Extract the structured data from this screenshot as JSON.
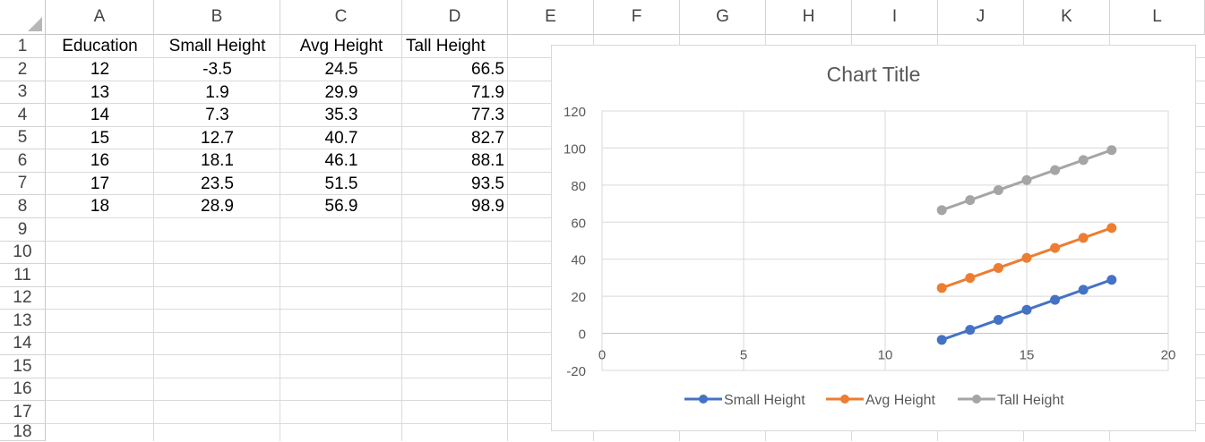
{
  "sheet": {
    "columns": [
      "A",
      "B",
      "C",
      "D",
      "E",
      "F",
      "G",
      "H",
      "I",
      "J",
      "K",
      "L"
    ],
    "rows": [
      "1",
      "2",
      "3",
      "4",
      "5",
      "6",
      "7",
      "8",
      "9",
      "10",
      "11",
      "12",
      "13",
      "14",
      "15",
      "16",
      "17",
      "18"
    ],
    "headers": [
      "Education",
      "Small Height",
      "Avg Height",
      "Tall Height"
    ],
    "data": [
      [
        "12",
        "-3.5",
        "24.5",
        "66.5"
      ],
      [
        "13",
        "1.9",
        "29.9",
        "71.9"
      ],
      [
        "14",
        "7.3",
        "35.3",
        "77.3"
      ],
      [
        "15",
        "12.7",
        "40.7",
        "82.7"
      ],
      [
        "16",
        "18.1",
        "46.1",
        "88.1"
      ],
      [
        "17",
        "23.5",
        "51.5",
        "93.5"
      ],
      [
        "18",
        "28.9",
        "56.9",
        "98.9"
      ]
    ]
  },
  "chart_data": {
    "type": "line",
    "title": "Chart Title",
    "xlabel": "",
    "ylabel": "",
    "xlim": [
      0,
      20
    ],
    "ylim": [
      -20,
      120
    ],
    "x_ticks": [
      "0",
      "5",
      "10",
      "15",
      "20"
    ],
    "y_ticks": [
      "-20",
      "0",
      "20",
      "40",
      "60",
      "80",
      "100",
      "120"
    ],
    "x": [
      12,
      13,
      14,
      15,
      16,
      17,
      18
    ],
    "series": [
      {
        "name": "Small Height",
        "color": "#4472c4",
        "values": [
          -3.5,
          1.9,
          7.3,
          12.7,
          18.1,
          23.5,
          28.9
        ]
      },
      {
        "name": "Avg Height",
        "color": "#ed7d31",
        "values": [
          24.5,
          29.9,
          35.3,
          40.7,
          46.1,
          51.5,
          56.9
        ]
      },
      {
        "name": "Tall Height",
        "color": "#a5a5a5",
        "values": [
          66.5,
          71.9,
          77.3,
          82.7,
          88.1,
          93.5,
          98.9
        ]
      }
    ],
    "grid": true,
    "legend": "bottom"
  }
}
